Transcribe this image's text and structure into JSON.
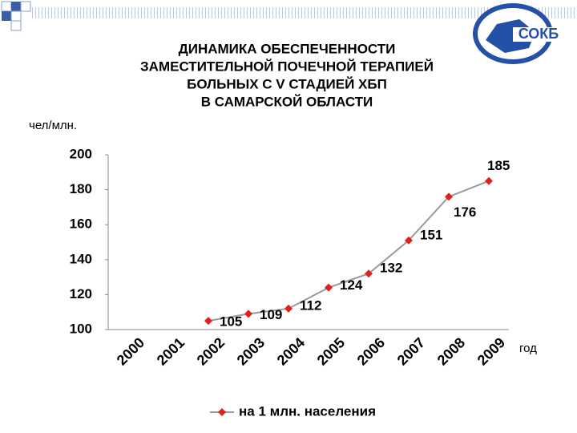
{
  "logo_text": "СОКБ",
  "chart_data": {
    "type": "line",
    "title": [
      "ДИНАМИКА ОБЕСПЕЧЕННОСТИ",
      "ЗАМЕСТИТЕЛЬНОЙ ПОЧЕЧНОЙ ТЕРАПИЕЙ",
      "БОЛЬНЫХ С V СТАДИЕЙ ХБП",
      "В САМАРСКОЙ ОБЛАСТИ"
    ],
    "y_label": "чел/млн.",
    "x_label": "год",
    "categories": [
      "2000",
      "2001",
      "2002",
      "2003",
      "2004",
      "2005",
      "2006",
      "2007",
      "2008",
      "2009"
    ],
    "series": [
      {
        "name": "на 1 млн. населения",
        "color": "#e0201a",
        "line_color": "#9a9a9a",
        "values": [
          null,
          null,
          105,
          109,
          112,
          124,
          132,
          151,
          176,
          185
        ]
      }
    ],
    "ylim": [
      100,
      200
    ],
    "yticks": [
      100,
      120,
      140,
      160,
      180,
      200
    ],
    "legend": "bottom"
  }
}
